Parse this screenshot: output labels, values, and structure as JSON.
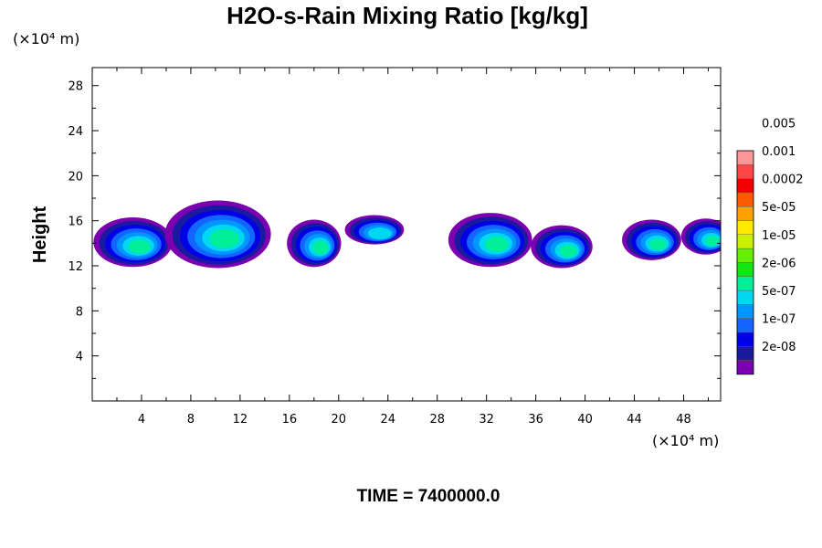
{
  "chart_data": {
    "type": "heatmap",
    "title": "H2O-s-Rain Mixing Ratio [kg/kg]",
    "xlabel": "",
    "ylabel": "Height",
    "x_unit": "(×10⁴ m)",
    "y_unit": "(×10⁴ m)",
    "xlim": [
      0,
      51
    ],
    "ylim": [
      0,
      29.6
    ],
    "x_ticks": [
      "4",
      "8",
      "12",
      "16",
      "20",
      "24",
      "28",
      "32",
      "36",
      "40",
      "44",
      "48"
    ],
    "x_tick_values": [
      4,
      8,
      12,
      16,
      20,
      24,
      28,
      32,
      36,
      40,
      44,
      48
    ],
    "y_ticks": [
      "4",
      "8",
      "12",
      "16",
      "20",
      "24",
      "28"
    ],
    "y_tick_values": [
      4,
      8,
      12,
      16,
      20,
      24,
      28
    ],
    "legend_levels": [
      "2e-08",
      "1e-07",
      "5e-07",
      "2e-06",
      "1e-05",
      "5e-05",
      "0.0002",
      "0.001",
      "0.005"
    ],
    "colors": [
      "#7a00b0",
      "#1a1aa0",
      "#0000e6",
      "#1464ff",
      "#0096ff",
      "#00d7f0",
      "#00f09a",
      "#14e614",
      "#64f000",
      "#c8f000",
      "#ffeb00",
      "#ffa000",
      "#ff5a00",
      "#f00000",
      "#ff4646",
      "#ff9696"
    ],
    "time_label": "TIME = 7400000.0",
    "clouds": [
      {
        "cx": 3.3,
        "cy": 14.1,
        "rx": 3.2,
        "ry": 2.2,
        "levels": 7
      },
      {
        "cx": 10.2,
        "cy": 14.8,
        "rx": 4.3,
        "ry": 3.0,
        "levels": 7
      },
      {
        "cx": 18.0,
        "cy": 14.0,
        "rx": 2.2,
        "ry": 2.1,
        "levels": 7
      },
      {
        "cx": 22.9,
        "cy": 15.2,
        "rx": 2.4,
        "ry": 1.3,
        "levels": 6
      },
      {
        "cx": 32.3,
        "cy": 14.3,
        "rx": 3.4,
        "ry": 2.4,
        "levels": 7
      },
      {
        "cx": 38.1,
        "cy": 13.7,
        "rx": 2.5,
        "ry": 1.9,
        "levels": 7
      },
      {
        "cx": 45.4,
        "cy": 14.3,
        "rx": 2.4,
        "ry": 1.8,
        "levels": 7
      },
      {
        "cx": 49.8,
        "cy": 14.6,
        "rx": 2.0,
        "ry": 1.6,
        "levels": 7
      }
    ]
  }
}
